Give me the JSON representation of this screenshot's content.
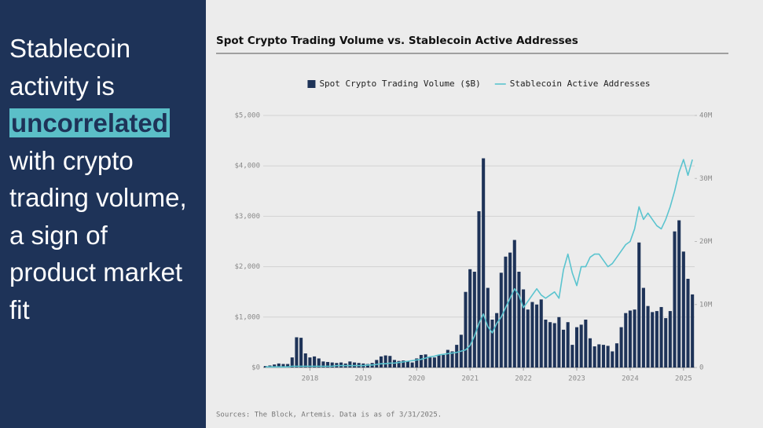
{
  "headline": {
    "before": "Stablecoin activity is",
    "highlight": "uncorrelated",
    "after": "with crypto trading volume, a sign of product market fit"
  },
  "chart_data": {
    "type": "bar-line",
    "title": "Spot Crypto Trading Volume vs. Stablecoin Active Addresses",
    "source": "Sources: The Block, Artemis. Data is as of 3/31/2025.",
    "categories": [
      null,
      null,
      null,
      null,
      null,
      null,
      null,
      null,
      null,
      null,
      "2018",
      null,
      null,
      null,
      null,
      null,
      null,
      null,
      null,
      null,
      null,
      null,
      "2019",
      null,
      null,
      null,
      null,
      null,
      null,
      null,
      null,
      null,
      null,
      null,
      "2020",
      null,
      null,
      null,
      null,
      null,
      null,
      null,
      null,
      null,
      null,
      null,
      "2021",
      null,
      null,
      null,
      null,
      null,
      null,
      null,
      null,
      null,
      null,
      null,
      "2022",
      null,
      null,
      null,
      null,
      null,
      null,
      null,
      null,
      null,
      null,
      null,
      "2023",
      null,
      null,
      null,
      null,
      null,
      null,
      null,
      null,
      null,
      null,
      null,
      "2024",
      null,
      null,
      null,
      null,
      null,
      null,
      null,
      null,
      null,
      null,
      null,
      "2025",
      null,
      null
    ],
    "series": [
      {
        "name": "Spot Crypto Trading Volume ($B)",
        "color": "#1e3358",
        "type": "bar",
        "values": [
          30,
          40,
          60,
          80,
          70,
          70,
          200,
          600,
          590,
          280,
          200,
          220,
          180,
          120,
          110,
          100,
          90,
          100,
          80,
          120,
          100,
          90,
          80,
          70,
          90,
          150,
          220,
          240,
          230,
          150,
          130,
          140,
          120,
          100,
          180,
          250,
          260,
          200,
          200,
          250,
          250,
          350,
          320,
          450,
          650,
          1500,
          1950,
          1900,
          3100,
          4150,
          1580,
          950,
          1080,
          1880,
          2200,
          2280,
          2530,
          1900,
          1550,
          1150,
          1300,
          1250,
          1350,
          950,
          900,
          880,
          1000,
          750,
          900,
          450,
          800,
          850,
          950,
          580,
          420,
          460,
          450,
          430,
          320,
          480,
          800,
          1080,
          1130,
          1150,
          2480,
          1580,
          1220,
          1100,
          1120,
          1200,
          980,
          1120,
          2700,
          2920,
          2300,
          1760,
          1450
        ]
      },
      {
        "name": "Stablecoin Active Addresses",
        "color": "#5bc4cf",
        "type": "line",
        "axis": "y2",
        "values": [
          0.1,
          0.1,
          0.1,
          0.1,
          0.1,
          0.1,
          0.2,
          0.2,
          0.2,
          0.2,
          0.2,
          0.2,
          0.2,
          0.2,
          0.2,
          0.2,
          0.3,
          0.3,
          0.3,
          0.3,
          0.3,
          0.3,
          0.3,
          0.4,
          0.4,
          0.5,
          0.6,
          0.6,
          0.7,
          0.7,
          0.8,
          0.9,
          1.0,
          1.1,
          1.2,
          1.3,
          1.5,
          1.7,
          1.8,
          2.0,
          2.1,
          2.2,
          2.3,
          2.4,
          2.6,
          2.8,
          3.5,
          5.0,
          7.0,
          8.5,
          6.5,
          5.5,
          7.0,
          8.0,
          9.5,
          11.0,
          12.5,
          11.5,
          9.5,
          10.5,
          11.5,
          12.5,
          11.5,
          11.0,
          11.5,
          12.0,
          11.0,
          15.5,
          18.0,
          15.0,
          13.0,
          16.0,
          16.0,
          17.5,
          18.0,
          18.0,
          17.0,
          16.0,
          16.5,
          17.5,
          18.5,
          19.5,
          20.0,
          22.0,
          25.5,
          23.5,
          24.5,
          23.5,
          22.5,
          22.0,
          23.5,
          25.5,
          28.0,
          31.0,
          33.0,
          30.5,
          33.0
        ]
      }
    ],
    "ylim": [
      0,
      5000
    ],
    "yticks": [
      {
        "value": 0,
        "label": "$0"
      },
      {
        "value": 1000,
        "label": "$1,000"
      },
      {
        "value": 2000,
        "label": "$2,000"
      },
      {
        "value": 3000,
        "label": "$3,000"
      },
      {
        "value": 4000,
        "label": "$4,000"
      },
      {
        "value": 5000,
        "label": "$5,000"
      }
    ],
    "y2lim": [
      0,
      40
    ],
    "y2ticks": [
      0,
      {
        "value": 10,
        "label": "10M"
      },
      {
        "value": 20,
        "label": "20M"
      },
      {
        "value": 30,
        "label": "30M"
      },
      {
        "value": 40,
        "label": "40M"
      }
    ],
    "grid": true,
    "legend": "top"
  }
}
